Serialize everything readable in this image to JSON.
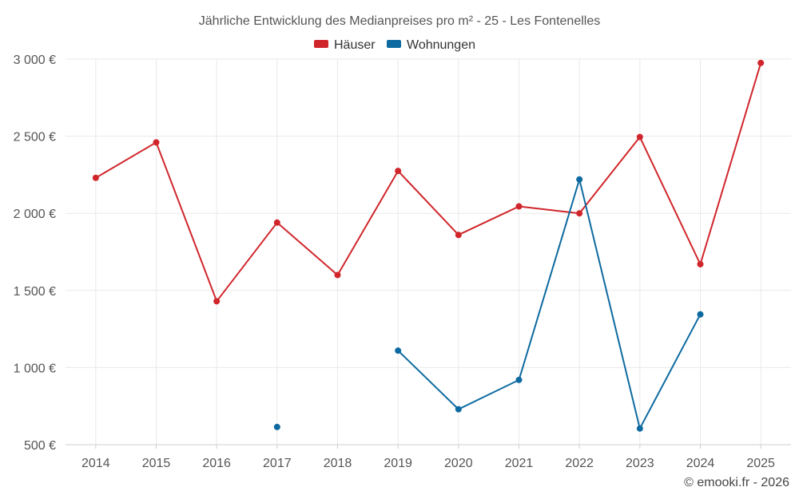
{
  "chart_data": {
    "type": "line",
    "title": "Jährliche Entwicklung des Medianpreises pro m² - 25 - Les Fontenelles",
    "categories": [
      "2014",
      "2015",
      "2016",
      "2017",
      "2018",
      "2019",
      "2020",
      "2021",
      "2022",
      "2023",
      "2024",
      "2025"
    ],
    "series": [
      {
        "name": "Häuser",
        "color": "#d0262b",
        "values": [
          2230,
          2460,
          1430,
          1940,
          1600,
          2275,
          1860,
          2045,
          2000,
          2495,
          1670,
          2975
        ]
      },
      {
        "name": "Wohnungen",
        "color": "#0d6aa0",
        "values": [
          null,
          null,
          null,
          615,
          null,
          1110,
          730,
          920,
          2220,
          605,
          1345,
          null
        ]
      }
    ],
    "ylim": [
      500,
      3000
    ],
    "yticks": [
      500,
      1000,
      1500,
      2000,
      2500,
      3000
    ],
    "ytick_labels": [
      "500 €",
      "1 000 €",
      "1 500 €",
      "2 000 €",
      "2 500 €",
      "3 000 €"
    ],
    "xlabel": "",
    "ylabel": "",
    "grid": true,
    "legend_position": "top-center",
    "credit": "© emooki.fr - 2026"
  }
}
